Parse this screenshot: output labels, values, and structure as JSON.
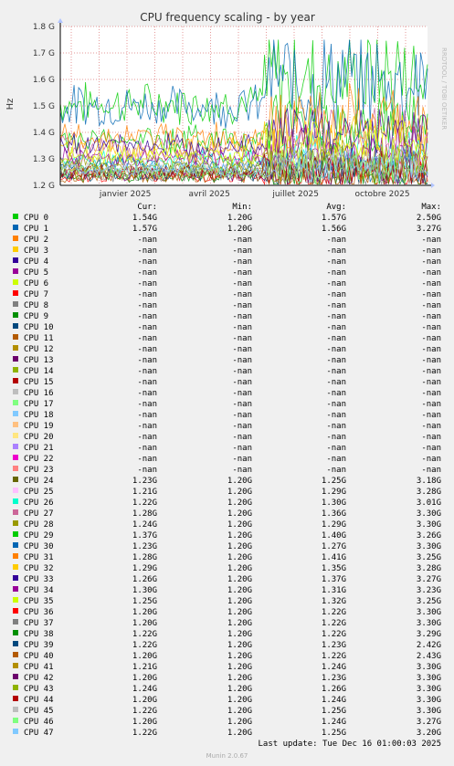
{
  "chart_data": {
    "type": "line",
    "title": "CPU frequency scaling - by year",
    "ylabel": "Hz",
    "side_label": "RRDTOOL / TOBI OETIKER",
    "ylim": [
      1.2,
      1.8
    ],
    "y_ticks": [
      {
        "value": 1.2,
        "label": "1.2 G"
      },
      {
        "value": 1.3,
        "label": "1.3 G"
      },
      {
        "value": 1.4,
        "label": "1.4 G"
      },
      {
        "value": 1.5,
        "label": "1.5 G"
      },
      {
        "value": 1.6,
        "label": "1.6 G"
      },
      {
        "value": 1.7,
        "label": "1.7 G"
      },
      {
        "value": 1.8,
        "label": "1.8 G"
      }
    ],
    "x_ticks": [
      {
        "pos": 0.177,
        "label": "janvier 2025"
      },
      {
        "pos": 0.406,
        "label": "avril 2025"
      },
      {
        "pos": 0.641,
        "label": "juillet 2025"
      },
      {
        "pos": 0.877,
        "label": "octobre 2025"
      }
    ],
    "grid": true
  },
  "legend": {
    "headers": {
      "cur": "Cur:",
      "min": "Min:",
      "avg": "Avg:",
      "max": "Max:"
    },
    "rows": [
      {
        "name": "CPU 0",
        "color": "#00cc00",
        "cur": "1.54G",
        "min": "1.20G",
        "avg": "1.57G",
        "max": "2.50G"
      },
      {
        "name": "CPU 1",
        "color": "#0066b3",
        "cur": "1.57G",
        "min": "1.20G",
        "avg": "1.56G",
        "max": "3.27G"
      },
      {
        "name": "CPU 2",
        "color": "#ff8000",
        "cur": "-nan",
        "min": "-nan",
        "avg": "-nan",
        "max": "-nan"
      },
      {
        "name": "CPU 3",
        "color": "#ffcc00",
        "cur": "-nan",
        "min": "-nan",
        "avg": "-nan",
        "max": "-nan"
      },
      {
        "name": "CPU 4",
        "color": "#330099",
        "cur": "-nan",
        "min": "-nan",
        "avg": "-nan",
        "max": "-nan"
      },
      {
        "name": "CPU 5",
        "color": "#990099",
        "cur": "-nan",
        "min": "-nan",
        "avg": "-nan",
        "max": "-nan"
      },
      {
        "name": "CPU 6",
        "color": "#ccff00",
        "cur": "-nan",
        "min": "-nan",
        "avg": "-nan",
        "max": "-nan"
      },
      {
        "name": "CPU 7",
        "color": "#ff0000",
        "cur": "-nan",
        "min": "-nan",
        "avg": "-nan",
        "max": "-nan"
      },
      {
        "name": "CPU 8",
        "color": "#808080",
        "cur": "-nan",
        "min": "-nan",
        "avg": "-nan",
        "max": "-nan"
      },
      {
        "name": "CPU 9",
        "color": "#008f00",
        "cur": "-nan",
        "min": "-nan",
        "avg": "-nan",
        "max": "-nan"
      },
      {
        "name": "CPU 10",
        "color": "#00487d",
        "cur": "-nan",
        "min": "-nan",
        "avg": "-nan",
        "max": "-nan"
      },
      {
        "name": "CPU 11",
        "color": "#b35a00",
        "cur": "-nan",
        "min": "-nan",
        "avg": "-nan",
        "max": "-nan"
      },
      {
        "name": "CPU 12",
        "color": "#b38f00",
        "cur": "-nan",
        "min": "-nan",
        "avg": "-nan",
        "max": "-nan"
      },
      {
        "name": "CPU 13",
        "color": "#6b006b",
        "cur": "-nan",
        "min": "-nan",
        "avg": "-nan",
        "max": "-nan"
      },
      {
        "name": "CPU 14",
        "color": "#8fb300",
        "cur": "-nan",
        "min": "-nan",
        "avg": "-nan",
        "max": "-nan"
      },
      {
        "name": "CPU 15",
        "color": "#b30000",
        "cur": "-nan",
        "min": "-nan",
        "avg": "-nan",
        "max": "-nan"
      },
      {
        "name": "CPU 16",
        "color": "#bebebe",
        "cur": "-nan",
        "min": "-nan",
        "avg": "-nan",
        "max": "-nan"
      },
      {
        "name": "CPU 17",
        "color": "#80ff80",
        "cur": "-nan",
        "min": "-nan",
        "avg": "-nan",
        "max": "-nan"
      },
      {
        "name": "CPU 18",
        "color": "#80c9ff",
        "cur": "-nan",
        "min": "-nan",
        "avg": "-nan",
        "max": "-nan"
      },
      {
        "name": "CPU 19",
        "color": "#ffc080",
        "cur": "-nan",
        "min": "-nan",
        "avg": "-nan",
        "max": "-nan"
      },
      {
        "name": "CPU 20",
        "color": "#ffe680",
        "cur": "-nan",
        "min": "-nan",
        "avg": "-nan",
        "max": "-nan"
      },
      {
        "name": "CPU 21",
        "color": "#aa80ff",
        "cur": "-nan",
        "min": "-nan",
        "avg": "-nan",
        "max": "-nan"
      },
      {
        "name": "CPU 22",
        "color": "#ee00cc",
        "cur": "-nan",
        "min": "-nan",
        "avg": "-nan",
        "max": "-nan"
      },
      {
        "name": "CPU 23",
        "color": "#ff8080",
        "cur": "-nan",
        "min": "-nan",
        "avg": "-nan",
        "max": "-nan"
      },
      {
        "name": "CPU 24",
        "color": "#666600",
        "cur": "1.23G",
        "min": "1.20G",
        "avg": "1.25G",
        "max": "3.18G"
      },
      {
        "name": "CPU 25",
        "color": "#ffbfff",
        "cur": "1.21G",
        "min": "1.20G",
        "avg": "1.29G",
        "max": "3.28G"
      },
      {
        "name": "CPU 26",
        "color": "#00ffcc",
        "cur": "1.22G",
        "min": "1.20G",
        "avg": "1.30G",
        "max": "3.01G"
      },
      {
        "name": "CPU 27",
        "color": "#cc6699",
        "cur": "1.28G",
        "min": "1.20G",
        "avg": "1.36G",
        "max": "3.30G"
      },
      {
        "name": "CPU 28",
        "color": "#999900",
        "cur": "1.24G",
        "min": "1.20G",
        "avg": "1.29G",
        "max": "3.30G"
      },
      {
        "name": "CPU 29",
        "color": "#00cc00",
        "cur": "1.37G",
        "min": "1.20G",
        "avg": "1.40G",
        "max": "3.26G"
      },
      {
        "name": "CPU 30",
        "color": "#0066b3",
        "cur": "1.23G",
        "min": "1.20G",
        "avg": "1.27G",
        "max": "3.30G"
      },
      {
        "name": "CPU 31",
        "color": "#ff8000",
        "cur": "1.28G",
        "min": "1.20G",
        "avg": "1.41G",
        "max": "3.25G"
      },
      {
        "name": "CPU 32",
        "color": "#ffcc00",
        "cur": "1.29G",
        "min": "1.20G",
        "avg": "1.35G",
        "max": "3.28G"
      },
      {
        "name": "CPU 33",
        "color": "#330099",
        "cur": "1.26G",
        "min": "1.20G",
        "avg": "1.37G",
        "max": "3.27G"
      },
      {
        "name": "CPU 34",
        "color": "#990099",
        "cur": "1.30G",
        "min": "1.20G",
        "avg": "1.31G",
        "max": "3.23G"
      },
      {
        "name": "CPU 35",
        "color": "#ccff00",
        "cur": "1.25G",
        "min": "1.20G",
        "avg": "1.32G",
        "max": "3.25G"
      },
      {
        "name": "CPU 36",
        "color": "#ff0000",
        "cur": "1.20G",
        "min": "1.20G",
        "avg": "1.22G",
        "max": "3.30G"
      },
      {
        "name": "CPU 37",
        "color": "#808080",
        "cur": "1.20G",
        "min": "1.20G",
        "avg": "1.22G",
        "max": "3.30G"
      },
      {
        "name": "CPU 38",
        "color": "#008f00",
        "cur": "1.22G",
        "min": "1.20G",
        "avg": "1.22G",
        "max": "3.29G"
      },
      {
        "name": "CPU 39",
        "color": "#00487d",
        "cur": "1.22G",
        "min": "1.20G",
        "avg": "1.23G",
        "max": "2.42G"
      },
      {
        "name": "CPU 40",
        "color": "#b35a00",
        "cur": "1.20G",
        "min": "1.20G",
        "avg": "1.22G",
        "max": "2.43G"
      },
      {
        "name": "CPU 41",
        "color": "#b38f00",
        "cur": "1.21G",
        "min": "1.20G",
        "avg": "1.24G",
        "max": "3.30G"
      },
      {
        "name": "CPU 42",
        "color": "#6b006b",
        "cur": "1.20G",
        "min": "1.20G",
        "avg": "1.23G",
        "max": "3.30G"
      },
      {
        "name": "CPU 43",
        "color": "#8fb300",
        "cur": "1.24G",
        "min": "1.20G",
        "avg": "1.26G",
        "max": "3.30G"
      },
      {
        "name": "CPU 44",
        "color": "#b30000",
        "cur": "1.20G",
        "min": "1.20G",
        "avg": "1.24G",
        "max": "3.30G"
      },
      {
        "name": "CPU 45",
        "color": "#bebebe",
        "cur": "1.22G",
        "min": "1.20G",
        "avg": "1.25G",
        "max": "3.30G"
      },
      {
        "name": "CPU 46",
        "color": "#80ff80",
        "cur": "1.20G",
        "min": "1.20G",
        "avg": "1.24G",
        "max": "3.27G"
      },
      {
        "name": "CPU 47",
        "color": "#80c9ff",
        "cur": "1.22G",
        "min": "1.20G",
        "avg": "1.25G",
        "max": "3.20G"
      }
    ]
  },
  "footer": {
    "last_update": "Last update: Tue Dec 16 01:00:03 2025",
    "version": "Munin 2.0.67"
  }
}
